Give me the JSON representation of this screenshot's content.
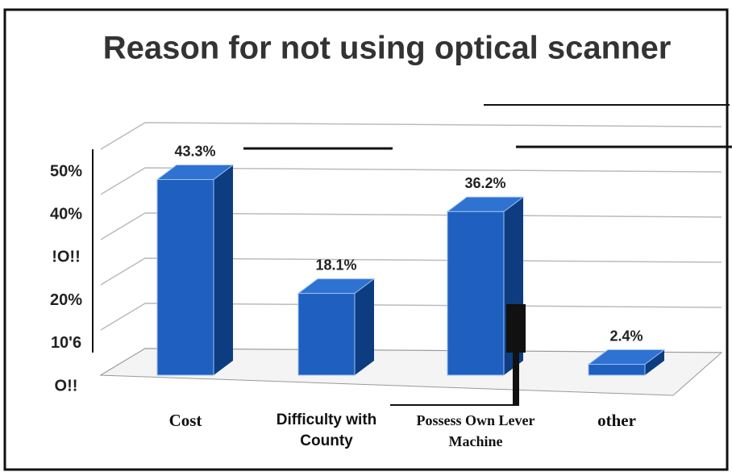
{
  "chart_data": {
    "type": "bar",
    "title": "Reason for not using optical scanner",
    "categories": [
      "Cost",
      "Difficulty with County",
      "Possess Own Lever Machine",
      "other"
    ],
    "values": [
      43.3,
      18.1,
      36.2,
      2.4
    ],
    "value_labels": [
      "43.3%",
      "18.1%",
      "36.2%",
      "2.4%"
    ],
    "color": "#1f5fbf",
    "ylim": [
      0,
      50
    ],
    "yticks": [
      {
        "value": 0,
        "label": "O!!"
      },
      {
        "value": 10,
        "label": "10'6"
      },
      {
        "value": 20,
        "label": "20%"
      },
      {
        "value": 30,
        "label": "!O!!"
      },
      {
        "value": 40,
        "label": "40%"
      },
      {
        "value": 50,
        "label": "50%"
      }
    ],
    "grid": true
  }
}
